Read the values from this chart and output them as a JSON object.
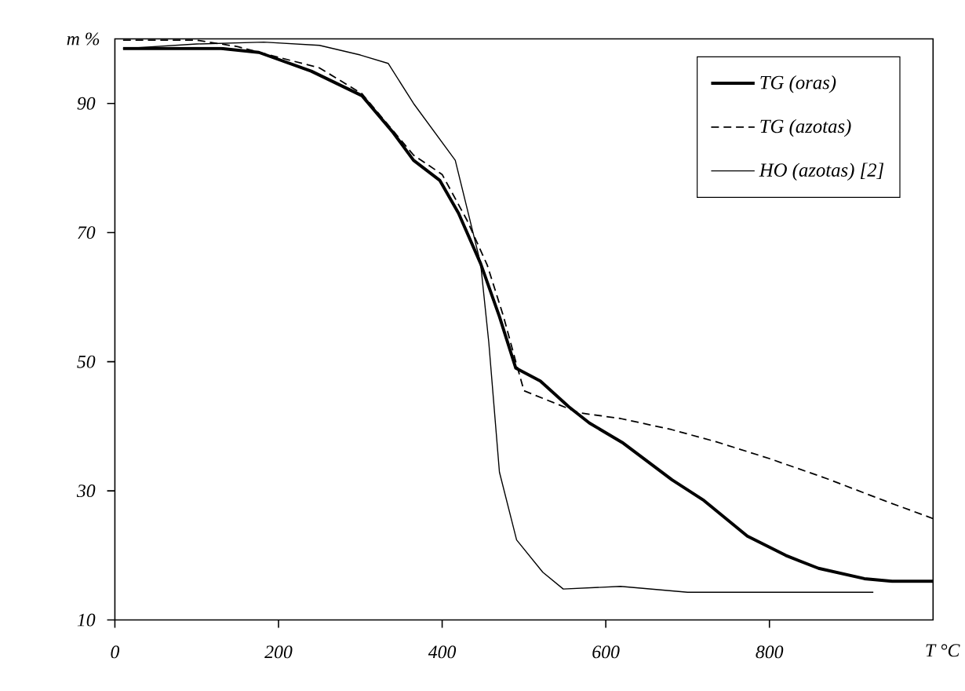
{
  "chart_data": {
    "type": "line",
    "xlabel": "T °C",
    "ylabel": "m %",
    "xlim": [
      0,
      1000
    ],
    "ylim": [
      10,
      100
    ],
    "xticks": [
      0,
      200,
      400,
      600,
      800
    ],
    "yticks": [
      10,
      30,
      50,
      70,
      90
    ],
    "grid": false,
    "legend": "top right",
    "marker": "none",
    "series": [
      {
        "name": "TG (oras)",
        "color": "#000000",
        "line_style": "solid",
        "x": [
          10,
          130,
          176,
          240,
          302,
          340,
          365,
          397,
          420,
          447,
          470,
          490,
          520,
          555,
          580,
          620,
          681,
          720,
          773,
          820,
          860,
          916,
          950,
          1000
        ],
        "values": [
          98.5,
          98.5,
          97.9,
          95,
          91.2,
          85.5,
          81.2,
          78.1,
          73,
          65.2,
          57,
          49,
          47,
          43,
          40.5,
          37.5,
          31.7,
          28.5,
          23,
          20,
          18,
          16.4,
          16,
          16
        ]
      },
      {
        "name": "TG (azotas)",
        "color": "#000000",
        "line_style": "dashed",
        "x": [
          10,
          100,
          150,
          250,
          302,
          365,
          400,
          430,
          455,
          475,
          490,
          500,
          567,
          618,
          680,
          735,
          800,
          870,
          940,
          1000
        ],
        "values": [
          99.8,
          99.8,
          98.8,
          95.5,
          91.5,
          82,
          79,
          72,
          65,
          57,
          50,
          45.5,
          42.1,
          41.2,
          39.5,
          37.6,
          35,
          31.9,
          28.5,
          25.7
        ]
      },
      {
        "name": "HO (azotas) [2]",
        "color": "#000000",
        "line_style": "solid",
        "x": [
          10,
          100,
          182,
          250,
          300,
          334,
          365,
          416,
          447,
          457,
          470,
          491,
          523,
          548,
          618,
          700,
          927
        ],
        "values": [
          98.5,
          99.2,
          99.5,
          99,
          97.5,
          96.2,
          90,
          81.2,
          65.2,
          53,
          32.9,
          22.4,
          17.4,
          14.8,
          15.2,
          14.3,
          14.3
        ]
      }
    ]
  }
}
